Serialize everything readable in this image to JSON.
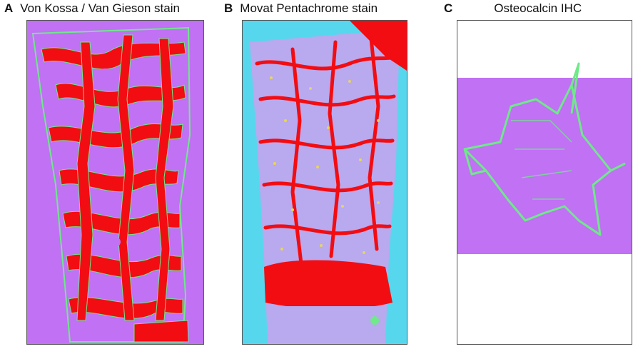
{
  "panels": [
    {
      "letter": "A",
      "title": "Von Kossa / Van Gieson stain"
    },
    {
      "letter": "B",
      "title": "Movat Pentachrome stain"
    },
    {
      "letter": "C",
      "title": "Osteocalcin IHC"
    }
  ],
  "colors": {
    "background_violet": "#c071f4",
    "mineralized_red": "#f20d12",
    "osteoid_green": "#6fe98a",
    "movat_cyan": "#56d7ee",
    "movat_lavender": "#b9a9ee",
    "movat_yellow": "#e6d65a"
  }
}
